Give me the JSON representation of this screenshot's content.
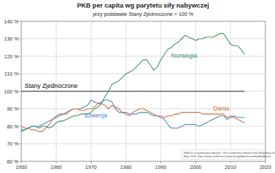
{
  "chart_data": {
    "type": "line",
    "title": "PKB per capita wg parytetu siły nabywczej",
    "subtitle": "przy podstawie Stany Zjednoczone = 100 %",
    "annotations": [
      "Wykres na podstawie danych: The Conference Board Total Economy Database™",
      "May 2015, http://www.conference-board.org/data/economydatabase/"
    ],
    "x": [
      1950,
      1951,
      1952,
      1953,
      1954,
      1955,
      1956,
      1957,
      1958,
      1959,
      1960,
      1961,
      1962,
      1963,
      1964,
      1965,
      1966,
      1967,
      1968,
      1969,
      1970,
      1971,
      1972,
      1973,
      1974,
      1975,
      1976,
      1977,
      1978,
      1979,
      1980,
      1981,
      1982,
      1983,
      1984,
      1985,
      1986,
      1987,
      1988,
      1989,
      1990,
      1991,
      1992,
      1993,
      1994,
      1995,
      1996,
      1997,
      1998,
      1999,
      2000,
      2001,
      2002,
      2003,
      2004,
      2005,
      2006,
      2007,
      2008,
      2009,
      2010,
      2011,
      2012,
      2013,
      2014
    ],
    "series": [
      {
        "name": "Norwegia",
        "color": "#3d8f5e",
        "values": [
          77,
          78,
          79,
          80,
          80,
          79,
          80,
          80,
          79,
          80,
          82,
          83,
          83,
          84,
          85,
          86,
          86,
          87,
          87,
          87,
          88,
          90,
          91,
          93,
          97,
          100,
          104,
          105,
          106,
          108,
          110,
          111,
          112,
          114,
          116,
          118,
          118,
          115,
          112,
          114,
          118,
          121,
          124,
          125,
          127,
          128,
          130,
          132,
          131,
          130,
          129,
          130,
          130,
          131,
          131,
          131,
          132,
          133,
          133,
          130,
          127,
          126,
          126,
          124,
          121
        ]
      },
      {
        "name": "Dania",
        "color": "#d4693f",
        "values": [
          80,
          79,
          79,
          78,
          78,
          77,
          77,
          79,
          81,
          84,
          86,
          87,
          87,
          87,
          89,
          90,
          90,
          89,
          89,
          90,
          90,
          91,
          93,
          93,
          92,
          90,
          92,
          91,
          90,
          88,
          87,
          86,
          88,
          89,
          90,
          90,
          89,
          88,
          87,
          86,
          86,
          85,
          86,
          86,
          87,
          87,
          88,
          88,
          88,
          88,
          88,
          88,
          87,
          87,
          87,
          87,
          87,
          87,
          87,
          85,
          86,
          85,
          84,
          83,
          82
        ]
      },
      {
        "name": "Szwecja",
        "color": "#3b86c6",
        "values": [
          78,
          78,
          79,
          80,
          80,
          80,
          81,
          82,
          83,
          84,
          85,
          86,
          87,
          88,
          89,
          90,
          90,
          90,
          91,
          92,
          95,
          94,
          93,
          94,
          95,
          95,
          94,
          90,
          88,
          88,
          88,
          87,
          87,
          87,
          88,
          88,
          88,
          87,
          86,
          86,
          85,
          84,
          81,
          79,
          79,
          79,
          80,
          81,
          81,
          81,
          81,
          80,
          81,
          82,
          83,
          84,
          85,
          86,
          86,
          84,
          85,
          86,
          85,
          85,
          85
        ]
      },
      {
        "name": "Stany Zjednoczone",
        "color": "#000000",
        "values": [
          100,
          100,
          100,
          100,
          100,
          100,
          100,
          100,
          100,
          100,
          100,
          100,
          100,
          100,
          100,
          100,
          100,
          100,
          100,
          100,
          100,
          100,
          100,
          100,
          100,
          100,
          100,
          100,
          100,
          100,
          100,
          100,
          100,
          100,
          100,
          100,
          100,
          100,
          100,
          100,
          100,
          100,
          100,
          100,
          100,
          100,
          100,
          100,
          100,
          100,
          100,
          100,
          100,
          100,
          100,
          100,
          100,
          100,
          100,
          100,
          100,
          100,
          100,
          100,
          100
        ]
      }
    ],
    "xlim": [
      1950,
      2020
    ],
    "xticks": [
      1950,
      1960,
      1970,
      1980,
      1990,
      2000,
      2010,
      2020
    ],
    "ylim": [
      60,
      140
    ],
    "yticks": [
      {
        "value": 60,
        "label": "60 %"
      },
      {
        "value": 70,
        "label": "70 %"
      },
      {
        "value": 80,
        "label": "80 %"
      },
      {
        "value": 90,
        "label": "90 %"
      },
      {
        "value": 100,
        "label": "100 %"
      },
      {
        "value": 110,
        "label": "110 %"
      },
      {
        "value": 120,
        "label": "120 %"
      },
      {
        "value": 130,
        "label": "130 %"
      },
      {
        "value": 140,
        "label": "140 %"
      }
    ],
    "grid": true
  }
}
